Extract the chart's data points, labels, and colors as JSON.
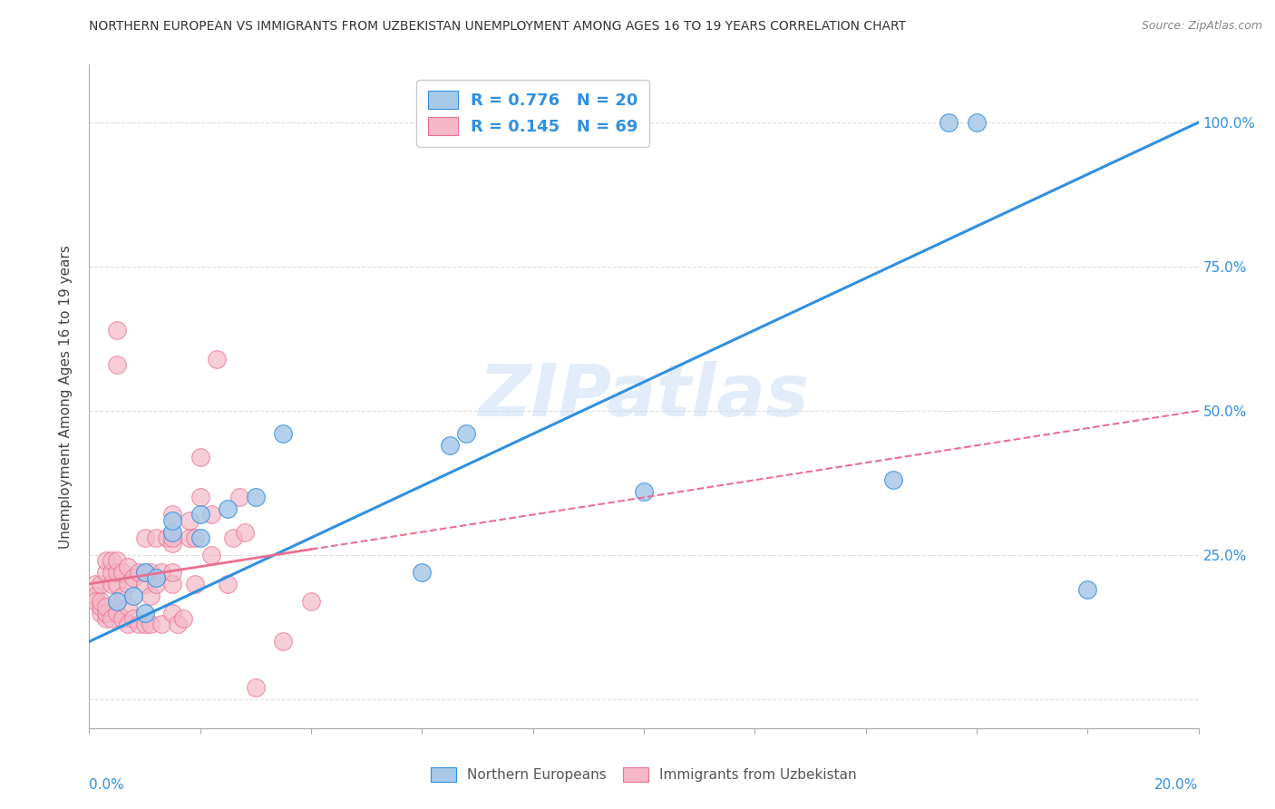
{
  "title": "NORTHERN EUROPEAN VS IMMIGRANTS FROM UZBEKISTAN UNEMPLOYMENT AMONG AGES 16 TO 19 YEARS CORRELATION CHART",
  "source": "Source: ZipAtlas.com",
  "ylabel": "Unemployment Among Ages 16 to 19 years",
  "blue_R": 0.776,
  "blue_N": 20,
  "pink_R": 0.145,
  "pink_N": 69,
  "blue_color": "#a8c8e8",
  "pink_color": "#f4b8c8",
  "blue_line_color": "#3090e0",
  "pink_line_color": "#e87090",
  "legend_label_blue": "Northern Europeans",
  "legend_label_pink": "Immigrants from Uzbekistan",
  "watermark": "ZIPatlas",
  "blue_scatter_x": [
    0.5,
    0.8,
    1.0,
    1.0,
    1.2,
    1.5,
    1.5,
    2.0,
    2.0,
    2.5,
    3.0,
    3.5,
    6.0,
    6.5,
    6.8,
    10.0,
    14.5,
    16.0,
    15.5,
    18.0
  ],
  "blue_scatter_y": [
    17,
    18,
    15,
    22,
    21,
    29,
    31,
    28,
    32,
    33,
    35,
    46,
    22,
    44,
    46,
    36,
    38,
    100,
    100,
    19
  ],
  "pink_scatter_x": [
    0.1,
    0.1,
    0.1,
    0.2,
    0.2,
    0.2,
    0.2,
    0.3,
    0.3,
    0.3,
    0.3,
    0.3,
    0.4,
    0.4,
    0.4,
    0.4,
    0.5,
    0.5,
    0.5,
    0.5,
    0.6,
    0.6,
    0.6,
    0.7,
    0.7,
    0.7,
    0.7,
    0.8,
    0.8,
    0.9,
    0.9,
    1.0,
    1.0,
    1.0,
    1.0,
    1.1,
    1.1,
    1.1,
    1.2,
    1.2,
    1.3,
    1.3,
    1.4,
    1.5,
    1.5,
    1.5,
    1.6,
    1.7,
    1.8,
    1.8,
    1.9,
    1.9,
    2.0,
    2.0,
    2.2,
    2.2,
    2.3,
    2.5,
    2.6,
    2.7,
    2.8,
    3.0,
    3.5,
    4.0,
    1.5,
    1.5,
    1.5,
    0.5,
    0.5
  ],
  "pink_scatter_y": [
    20,
    18,
    17,
    15,
    16,
    17,
    20,
    14,
    15,
    16,
    22,
    24,
    14,
    20,
    22,
    24,
    15,
    20,
    22,
    24,
    14,
    18,
    22,
    13,
    16,
    20,
    23,
    14,
    21,
    13,
    22,
    13,
    20,
    22,
    28,
    13,
    18,
    22,
    20,
    28,
    13,
    22,
    28,
    15,
    20,
    27,
    13,
    14,
    28,
    31,
    20,
    28,
    35,
    42,
    25,
    32,
    59,
    20,
    28,
    35,
    29,
    2,
    10,
    17,
    32,
    28,
    22,
    58,
    64
  ],
  "blue_trend_x": [
    0.0,
    20.0
  ],
  "blue_trend_y": [
    10.0,
    100.0
  ],
  "pink_trend_x": [
    0.0,
    20.0
  ],
  "pink_trend_y": [
    20.0,
    50.0
  ],
  "xlim": [
    0.0,
    20.0
  ],
  "ylim": [
    -5.0,
    110.0
  ],
  "ytick_vals": [
    0,
    25,
    50,
    75,
    100
  ],
  "right_ytick_labels": [
    "100.0%",
    "75.0%",
    "50.0%",
    "25.0%"
  ],
  "xtick_vals": [
    0,
    2,
    4,
    6,
    8,
    10,
    12,
    14,
    16,
    18,
    20
  ],
  "background_color": "#ffffff",
  "grid_color": "#dddddd"
}
